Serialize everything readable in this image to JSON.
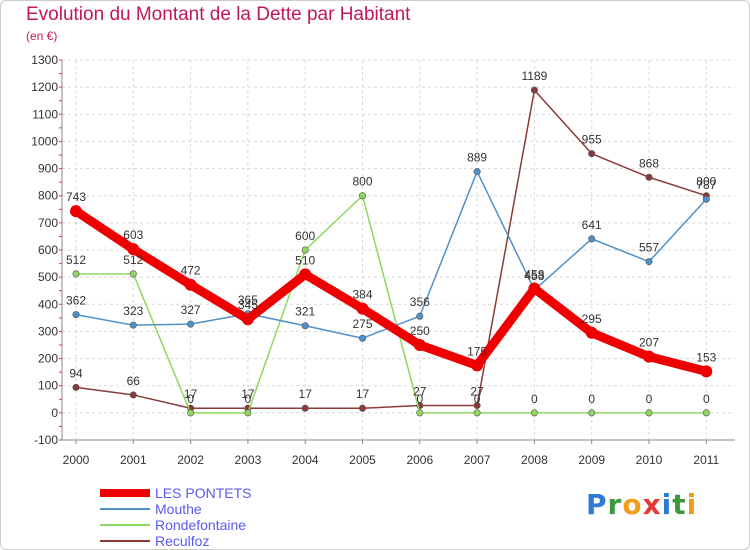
{
  "header": {
    "title": "Evolution du Montant de la Dette par Habitant",
    "subtitle": "(en €)"
  },
  "logo": {
    "text": "Proxiti",
    "letters": [
      {
        "ch": "P",
        "color": "#2e7bd6"
      },
      {
        "ch": "r",
        "color": "#3a9a3a"
      },
      {
        "ch": "o",
        "color": "#f29a1a"
      },
      {
        "ch": "x",
        "color": "#e53935"
      },
      {
        "ch": "i",
        "color": "#2e7bd6"
      },
      {
        "ch": "t",
        "color": "#3a9a3a"
      },
      {
        "ch": "i",
        "color": "#f29a1a"
      }
    ]
  },
  "chart_data": {
    "type": "line",
    "title": "Evolution du Montant de la Dette par Habitant",
    "subtitle": "(en €)",
    "x": [
      "2000",
      "2001",
      "2002",
      "2003",
      "2004",
      "2005",
      "2006",
      "2007",
      "2008",
      "2009",
      "2010",
      "2011"
    ],
    "ylim": [
      -100,
      1300
    ],
    "yticks": [
      -100,
      0,
      100,
      200,
      300,
      400,
      500,
      600,
      700,
      800,
      900,
      1000,
      1100,
      1200,
      1300
    ],
    "grid": true,
    "legend_position": "bottom-left",
    "series": [
      {
        "name": "LES PONTETS",
        "color": "#ee0000",
        "values": [
          743,
          603,
          472,
          345,
          510,
          384,
          250,
          175,
          458,
          295,
          207,
          153
        ]
      },
      {
        "name": "Mouthe",
        "color": "#4f91c9",
        "values": [
          362,
          323,
          327,
          365,
          321,
          275,
          356,
          889,
          453,
          641,
          557,
          787
        ]
      },
      {
        "name": "Rondefontaine",
        "color": "#8fd860",
        "values": [
          512,
          512,
          0,
          0,
          600,
          800,
          0,
          0,
          0,
          0,
          0,
          0
        ]
      },
      {
        "name": "Reculfoz",
        "color": "#8b3a3a",
        "values": [
          94,
          66,
          17,
          17,
          17,
          17,
          27,
          27,
          1189,
          955,
          868,
          800
        ]
      }
    ]
  }
}
